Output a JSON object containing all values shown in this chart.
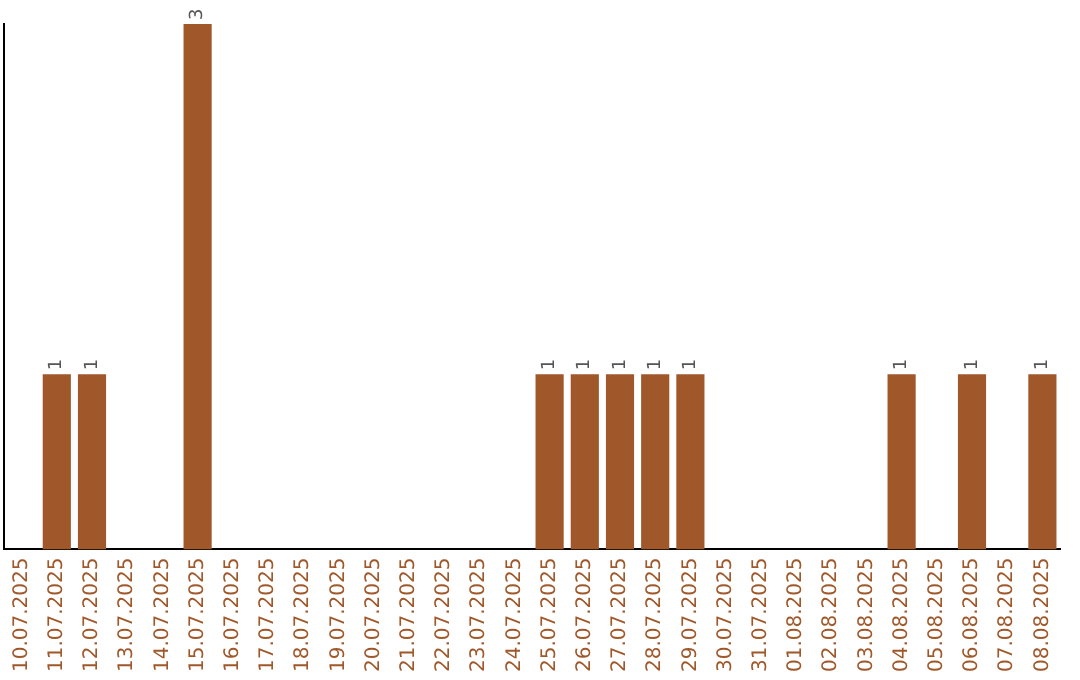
{
  "chart_data": {
    "type": "bar",
    "categories": [
      "10.07.2025",
      "11.07.2025",
      "12.07.2025",
      "13.07.2025",
      "14.07.2025",
      "15.07.2025",
      "16.07.2025",
      "17.07.2025",
      "18.07.2025",
      "19.07.2025",
      "20.07.2025",
      "21.07.2025",
      "22.07.2025",
      "23.07.2025",
      "24.07.2025",
      "25.07.2025",
      "26.07.2025",
      "27.07.2025",
      "28.07.2025",
      "29.07.2025",
      "30.07.2025",
      "31.07.2025",
      "01.08.2025",
      "02.08.2025",
      "03.08.2025",
      "04.08.2025",
      "05.08.2025",
      "06.08.2025",
      "07.08.2025",
      "08.08.2025"
    ],
    "values": [
      0,
      1,
      1,
      0,
      0,
      3,
      0,
      0,
      0,
      0,
      0,
      0,
      0,
      0,
      0,
      1,
      1,
      1,
      1,
      1,
      0,
      0,
      0,
      0,
      0,
      1,
      0,
      1,
      0,
      1
    ],
    "value_labels": [
      null,
      "1",
      "1",
      null,
      null,
      "3",
      null,
      null,
      null,
      null,
      null,
      null,
      null,
      null,
      null,
      "1",
      "1",
      "1",
      "1",
      "1",
      null,
      null,
      null,
      null,
      null,
      "1",
      null,
      "1",
      null,
      "1"
    ],
    "color": "#a0582a",
    "grid": false,
    "legend": false
  }
}
